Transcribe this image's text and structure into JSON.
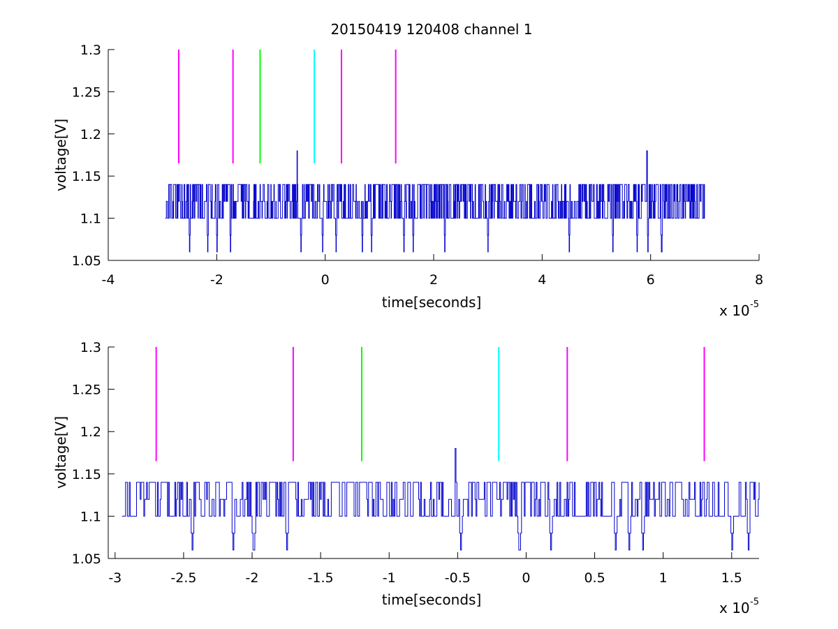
{
  "figure_title": "20150419 120408 channel 1",
  "chart_data": [
    {
      "type": "line",
      "xlabel": "time[seconds]",
      "ylabel": "voltage[V]",
      "xlim": [
        -4e-05,
        8e-05
      ],
      "ylim": [
        1.05,
        1.3
      ],
      "xtick_labels": [
        "-4",
        "-2",
        "0",
        "2",
        "4",
        "6",
        "8"
      ],
      "ytick_labels": [
        "1.05",
        "1.1",
        "1.15",
        "1.2",
        "1.25",
        "1.3"
      ],
      "x_multiplier": {
        "base": "x 10",
        "exponent": "-5"
      },
      "grid": false,
      "series": [
        {
          "color": "#0000cc",
          "x_range": [
            -2.95e-05,
            7e-05
          ],
          "levels": [
            1.06,
            1.1,
            1.12,
            1.14
          ],
          "peaks": [
            {
              "x": -5.2e-06,
              "y": 1.18
            },
            {
              "x": 5.93e-05,
              "y": 1.18
            }
          ],
          "dips": [
            -2.5e-05,
            -2.17e-05,
            -2e-05,
            -1.75e-05,
            -4.5e-06,
            -5e-07,
            2e-06,
            6.8e-06,
            8.5e-06,
            1.45e-05,
            1.62e-05,
            2.2e-05,
            3e-05,
            4.5e-05,
            5.3e-05,
            5.75e-05,
            5.95e-05,
            6.2e-05
          ]
        }
      ],
      "markers": [
        {
          "x": -2.7e-05,
          "y_range": [
            1.165,
            1.3
          ],
          "color": "#ff00ff"
        },
        {
          "x": -1.7e-05,
          "y_range": [
            1.165,
            1.3
          ],
          "color": "#ff00ff"
        },
        {
          "x": -1.2e-05,
          "y_range": [
            1.165,
            1.3
          ],
          "color": "#00ff00"
        },
        {
          "x": -2e-06,
          "y_range": [
            1.165,
            1.3
          ],
          "color": "#00ffff"
        },
        {
          "x": 3e-06,
          "y_range": [
            1.165,
            1.3
          ],
          "color": "#ff00ff"
        },
        {
          "x": 1.3e-05,
          "y_range": [
            1.165,
            1.3
          ],
          "color": "#ff00ff"
        }
      ]
    },
    {
      "type": "line",
      "xlabel": "time[seconds]",
      "ylabel": "voltage[V]",
      "xlim": [
        -3.05e-05,
        1.7e-05
      ],
      "ylim": [
        1.05,
        1.3
      ],
      "xtick_labels": [
        "-3",
        "-2.5",
        "-2",
        "-1.5",
        "-1",
        "-0.5",
        "0",
        "0.5",
        "1",
        "1.5"
      ],
      "ytick_labels": [
        "1.05",
        "1.1",
        "1.15",
        "1.2",
        "1.25",
        "1.3"
      ],
      "x_multiplier": {
        "base": "x 10",
        "exponent": "-5"
      },
      "grid": false,
      "series": [
        {
          "color": "#0000cc",
          "x_range": [
            -2.95e-05,
            1.7e-05
          ],
          "levels": [
            1.06,
            1.1,
            1.12,
            1.14
          ],
          "peaks": [
            {
              "x": -5.2e-06,
              "y": 1.18
            }
          ],
          "dips": [
            -2.44e-05,
            -2.14e-05,
            -1.99e-05,
            -1.75e-05,
            -4.8e-06,
            -5e-07,
            1.8e-06,
            6.5e-06,
            7.5e-06,
            8.5e-06,
            1.5e-05,
            1.62e-05
          ]
        }
      ],
      "markers": [
        {
          "x": -2.7e-05,
          "y_range": [
            1.165,
            1.3
          ],
          "color": "#ff00ff"
        },
        {
          "x": -1.7e-05,
          "y_range": [
            1.165,
            1.3
          ],
          "color": "#ff00ff"
        },
        {
          "x": -1.2e-05,
          "y_range": [
            1.165,
            1.3
          ],
          "color": "#00ff00"
        },
        {
          "x": -2e-06,
          "y_range": [
            1.165,
            1.3
          ],
          "color": "#00ffff"
        },
        {
          "x": 3e-06,
          "y_range": [
            1.165,
            1.3
          ],
          "color": "#ff00ff"
        },
        {
          "x": 1.3e-05,
          "y_range": [
            1.165,
            1.3
          ],
          "color": "#ff00ff"
        }
      ]
    }
  ]
}
